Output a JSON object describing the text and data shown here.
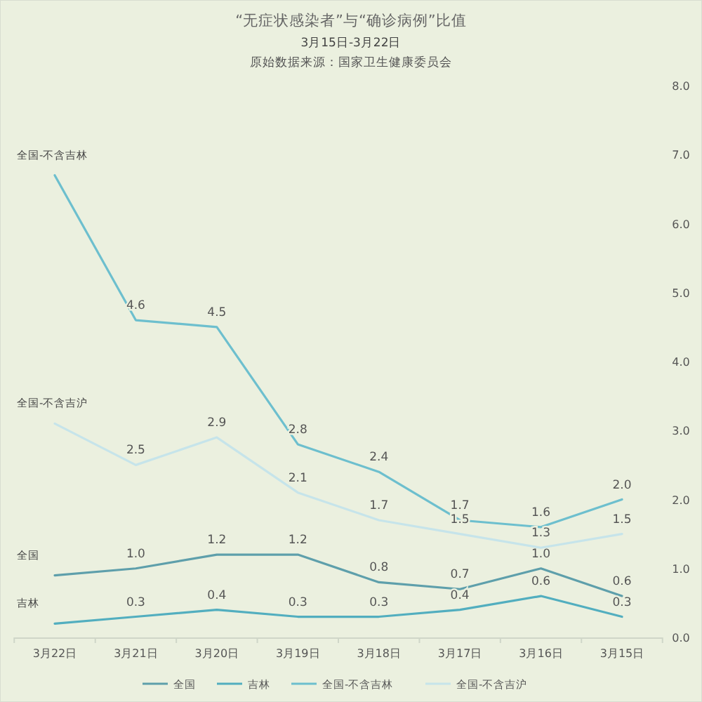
{
  "chart_data": {
    "type": "line",
    "title": "“无症状感染者”与“确诊病例”比值",
    "subtitle": "3月15日-3月22日",
    "annotations": [
      "原始数据来源：国家卫生健康委员会"
    ],
    "categories": [
      "3月22日",
      "3月21日",
      "3月20日",
      "3月19日",
      "3月18日",
      "3月17日",
      "3月16日",
      "3月15日"
    ],
    "series": [
      {
        "name": "全国",
        "color": "#5e9fab",
        "values": [
          0.9,
          1.0,
          1.2,
          1.2,
          0.8,
          0.7,
          1.0,
          0.6
        ],
        "value_labels": [
          null,
          "1.0",
          "1.2",
          "1.2",
          "0.8",
          "0.7",
          "1.0",
          "0.6"
        ]
      },
      {
        "name": "吉林",
        "color": "#52aebf",
        "values": [
          0.2,
          0.3,
          0.4,
          0.3,
          0.3,
          0.4,
          0.6,
          0.3
        ],
        "value_labels": [
          null,
          "0.3",
          "0.4",
          "0.3",
          "0.3",
          "0.4",
          "0.6",
          "0.3"
        ]
      },
      {
        "name": "全国-不含吉林",
        "color": "#6dbfce",
        "values": [
          6.7,
          4.6,
          4.5,
          2.8,
          2.4,
          1.7,
          1.6,
          2.0
        ],
        "value_labels": [
          null,
          "4.6",
          "4.5",
          "2.8",
          "2.4",
          "1.7",
          "1.6",
          "2.0"
        ]
      },
      {
        "name": "全国-不含吉沪",
        "color": "#c6e4ea",
        "values": [
          3.1,
          2.5,
          2.9,
          2.1,
          1.7,
          1.5,
          1.3,
          1.5
        ],
        "value_labels": [
          null,
          "2.5",
          "2.9",
          "2.1",
          "1.7",
          "1.5",
          "1.3",
          "1.5"
        ]
      }
    ],
    "ylim": [
      0,
      8
    ],
    "yticks": [
      {
        "value": 0,
        "label": "0.0"
      },
      {
        "value": 1,
        "label": "1.0"
      },
      {
        "value": 2,
        "label": "2.0"
      },
      {
        "value": 3,
        "label": "3.0"
      },
      {
        "value": 4,
        "label": "4.0"
      },
      {
        "value": 5,
        "label": "5.0"
      },
      {
        "value": 6,
        "label": "6.0"
      },
      {
        "value": 7,
        "label": "7.0"
      },
      {
        "value": 8,
        "label": "8.0"
      }
    ],
    "grid": false,
    "legend": "bottom",
    "marker": "none",
    "line_style": "solid"
  }
}
